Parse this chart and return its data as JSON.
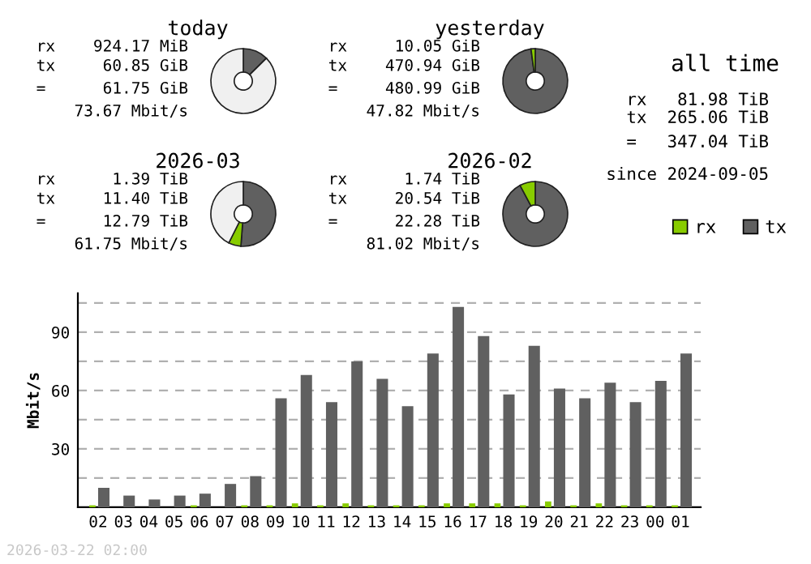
{
  "chart_data": [
    {
      "type": "donut",
      "title": "today",
      "categories": [
        null,
        null,
        null
      ],
      "values": [
        12.6,
        null,
        87.2
      ],
      "colors": [
        "#606060",
        "#88cc00",
        "#f0f0f0"
      ],
      "annotations": [
        "rx    924.17 MiB",
        "tx     60.85 GiB",
        "=      61.75 GiB",
        "73.67 Mbit/s"
      ]
    },
    {
      "type": "donut",
      "title": "yesterday",
      "categories": [
        null,
        null
      ],
      "values": [
        97.9,
        2.1
      ],
      "colors": [
        "#606060",
        "#88cc00"
      ],
      "annotations": [
        "rx     10.05 GiB",
        "tx    470.94 GiB",
        "=     480.99 GiB",
        "47.82 Mbit/s"
      ]
    },
    {
      "type": "donut",
      "title": "2026-03",
      "categories": [
        null,
        null,
        null
      ],
      "values": [
        51.2,
        6.2,
        42.6
      ],
      "colors": [
        "#606060",
        "#88cc00",
        "#f0f0f0"
      ],
      "annotations": [
        "rx      1.39 TiB",
        "tx     11.40 TiB",
        "=      12.79 TiB",
        "61.75 Mbit/s"
      ]
    },
    {
      "type": "donut",
      "title": "2026-02",
      "categories": [
        null,
        null
      ],
      "values": [
        92.2,
        7.8
      ],
      "colors": [
        "#606060",
        "#88cc00"
      ],
      "annotations": [
        "rx      1.74 TiB",
        "tx     20.54 TiB",
        "=      22.28 TiB",
        "81.02 Mbit/s"
      ]
    },
    {
      "type": "other",
      "title": "all time",
      "annotations": [
        "rx   81.98 TiB",
        "tx  265.06 TiB",
        "=   347.04 TiB",
        "since 2024-09-05"
      ]
    },
    {
      "type": "bar",
      "ylabel": "Mbit/s",
      "categories": [
        "02",
        "03",
        "04",
        "05",
        "06",
        "07",
        "08",
        "09",
        "10",
        "11",
        "12",
        "13",
        "14",
        "15",
        "16",
        "17",
        "18",
        "19",
        "20",
        "21",
        "22",
        "23",
        "00",
        "01"
      ],
      "series": [
        {
          "name": "rx",
          "color": "#88cc00",
          "values": [
            1,
            0,
            0,
            0,
            1,
            0,
            1,
            1,
            2,
            1,
            2,
            1,
            1,
            1,
            2,
            2,
            2,
            1,
            3,
            1,
            2,
            1,
            1,
            1
          ]
        },
        {
          "name": "tx",
          "color": "#606060",
          "values": [
            10,
            6,
            4,
            6,
            7,
            12,
            16,
            56,
            68,
            54,
            75,
            66,
            52,
            79,
            103,
            88,
            58,
            83,
            61,
            56,
            64,
            54,
            65,
            79
          ]
        }
      ],
      "ylim": [
        0,
        110
      ],
      "yticks": [
        {
          "value": 15,
          "label": null
        },
        30,
        {
          "value": 45,
          "label": null
        },
        60,
        {
          "value": 75,
          "label": null
        },
        90,
        {
          "value": 105,
          "label": null
        }
      ],
      "grid": "y",
      "legend": "top right",
      "annotations": [
        "2026-03-22 02:00"
      ]
    }
  ]
}
